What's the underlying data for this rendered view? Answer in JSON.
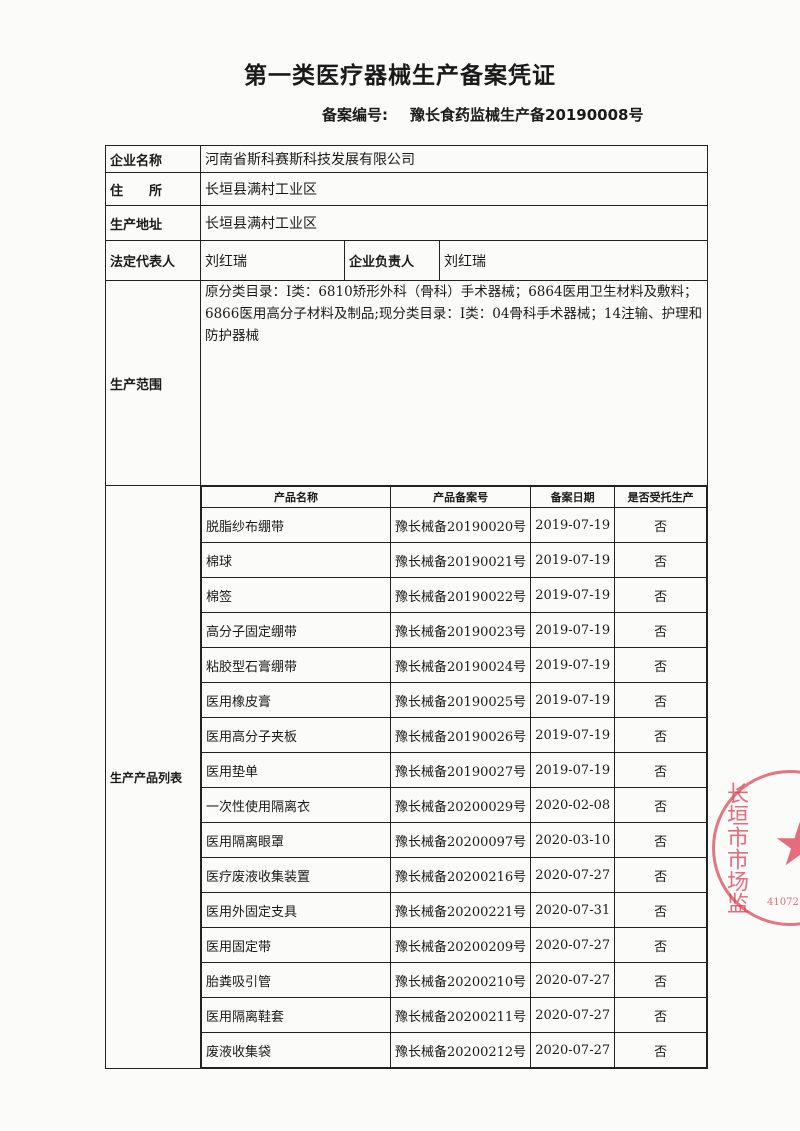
{
  "title": "第一类医疗器械生产备案凭证",
  "registration": {
    "label": "备案编号:",
    "value": "豫长食药监械生产备20190008号"
  },
  "fields": {
    "company_label": "企业名称",
    "company": "河南省斯科赛斯科技发展有限公司",
    "address_label": "住　　所",
    "address": "长垣县满村工业区",
    "production_address_label": "生产地址",
    "production_address": "长垣县满村工业区",
    "legal_rep_label": "法定代表人",
    "legal_rep": "刘红瑞",
    "principal_label": "企业负责人",
    "principal": "刘红瑞",
    "scope_label": "生产范围",
    "scope": "原分类目录：Ⅰ类：6810矫形外科（骨科）手术器械；6864医用卫生材料及敷料；6866医用高分子材料及制品;现分类目录：Ⅰ类：04骨科手术器械；14注输、护理和防护器械",
    "product_list_label": "生产产品列表"
  },
  "products": {
    "headers": [
      "产品名称",
      "产品备案号",
      "备案日期",
      "是否受托生产"
    ],
    "rows": [
      [
        "脱脂纱布绷带",
        "豫长械备20190020号",
        "2019-07-19",
        "否"
      ],
      [
        "棉球",
        "豫长械备20190021号",
        "2019-07-19",
        "否"
      ],
      [
        "棉签",
        "豫长械备20190022号",
        "2019-07-19",
        "否"
      ],
      [
        "高分子固定绷带",
        "豫长械备20190023号",
        "2019-07-19",
        "否"
      ],
      [
        "粘胶型石膏绷带",
        "豫长械备20190024号",
        "2019-07-19",
        "否"
      ],
      [
        "医用橡皮膏",
        "豫长械备20190025号",
        "2019-07-19",
        "否"
      ],
      [
        "医用高分子夹板",
        "豫长械备20190026号",
        "2019-07-19",
        "否"
      ],
      [
        "医用垫单",
        "豫长械备20190027号",
        "2019-07-19",
        "否"
      ],
      [
        "一次性使用隔离衣",
        "豫长械备20200029号",
        "2020-02-08",
        "否"
      ],
      [
        "医用隔离眼罩",
        "豫长械备20200097号",
        "2020-03-10",
        "否"
      ],
      [
        "医疗废液收集装置",
        "豫长械备20200216号",
        "2020-07-27",
        "否"
      ],
      [
        "医用外固定支具",
        "豫长械备20200221号",
        "2020-07-31",
        "否"
      ],
      [
        "医用固定带",
        "豫长械备20200209号",
        "2020-07-27",
        "否"
      ],
      [
        "胎粪吸引管",
        "豫长械备20200210号",
        "2020-07-27",
        "否"
      ],
      [
        "医用隔离鞋套",
        "豫长械备20200211号",
        "2020-07-27",
        "否"
      ],
      [
        "废液收集袋",
        "豫长械备20200212号",
        "2020-07-27",
        "否"
      ]
    ]
  },
  "stamp": {
    "text": "长垣市市场监",
    "code": "41072",
    "color": "#dc3c50"
  }
}
